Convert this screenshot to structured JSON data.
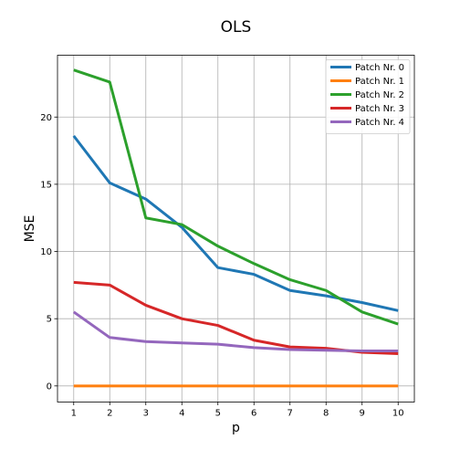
{
  "chart_data": {
    "type": "line",
    "title": "OLS",
    "xlabel": "p",
    "ylabel": "MSE",
    "x": [
      1,
      2,
      3,
      4,
      5,
      6,
      7,
      8,
      9,
      10
    ],
    "xlim": [
      0.55,
      10.45
    ],
    "ylim": [
      -1.2,
      24.6
    ],
    "xticks": [
      1,
      2,
      3,
      4,
      5,
      6,
      7,
      8,
      9,
      10
    ],
    "yticks": [
      0,
      5,
      10,
      15,
      20
    ],
    "grid": true,
    "legend_position": "top-right",
    "series": [
      {
        "name": "Patch Nr. 0",
        "color": "#1f77b4",
        "values": [
          18.6,
          15.1,
          13.9,
          11.8,
          8.8,
          8.3,
          7.1,
          6.7,
          6.2,
          5.6
        ]
      },
      {
        "name": "Patch Nr. 1",
        "color": "#ff7f0e",
        "values": [
          0,
          0,
          0,
          0,
          0,
          0,
          0,
          0,
          0,
          0
        ]
      },
      {
        "name": "Patch Nr. 2",
        "color": "#2ca02c",
        "values": [
          23.5,
          22.6,
          12.5,
          12.0,
          10.4,
          9.1,
          7.9,
          7.1,
          5.5,
          4.6
        ]
      },
      {
        "name": "Patch Nr. 3",
        "color": "#d62728",
        "values": [
          7.7,
          7.5,
          6.0,
          5.0,
          4.5,
          3.4,
          2.9,
          2.8,
          2.5,
          2.4
        ]
      },
      {
        "name": "Patch Nr. 4",
        "color": "#9467bd",
        "values": [
          5.5,
          3.6,
          3.3,
          3.2,
          3.1,
          2.85,
          2.7,
          2.65,
          2.6,
          2.6
        ]
      }
    ]
  }
}
